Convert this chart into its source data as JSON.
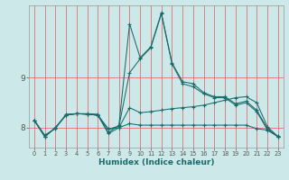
{
  "xlabel": "Humidex (Indice chaleur)",
  "background_color": "#cce8e8",
  "line_color": "#1a6b6b",
  "grid_color_v": "#e07070",
  "grid_color_h": "#e07070",
  "xlim": [
    -0.5,
    23.5
  ],
  "ylim": [
    7.6,
    10.45
  ],
  "yticks": [
    8,
    9
  ],
  "xtick_labels": [
    "0",
    "1",
    "2",
    "3",
    "4",
    "5",
    "6",
    "7",
    "8",
    "9",
    "10",
    "11",
    "12",
    "13",
    "14",
    "15",
    "16",
    "17",
    "18",
    "19",
    "20",
    "21",
    "22",
    "23"
  ],
  "series": [
    [
      8.15,
      7.85,
      7.98,
      8.27,
      8.28,
      8.28,
      8.27,
      7.9,
      8.05,
      10.08,
      9.4,
      9.62,
      10.3,
      9.3,
      8.92,
      8.88,
      8.7,
      8.62,
      8.62,
      8.48,
      8.53,
      8.35,
      7.98,
      7.83
    ],
    [
      8.15,
      7.82,
      8.0,
      8.25,
      8.28,
      8.27,
      8.25,
      7.97,
      8.03,
      9.1,
      9.38,
      9.6,
      10.28,
      9.28,
      8.88,
      8.82,
      8.68,
      8.6,
      8.6,
      8.45,
      8.5,
      8.32,
      7.96,
      7.82
    ],
    [
      8.15,
      7.82,
      8.0,
      8.25,
      8.28,
      8.27,
      8.25,
      7.97,
      8.0,
      8.08,
      8.05,
      8.05,
      8.05,
      8.05,
      8.05,
      8.05,
      8.05,
      8.05,
      8.05,
      8.05,
      8.05,
      7.98,
      7.95,
      7.82
    ],
    [
      8.15,
      7.82,
      8.0,
      8.25,
      8.28,
      8.27,
      8.25,
      7.88,
      8.0,
      8.4,
      8.3,
      8.32,
      8.35,
      8.38,
      8.4,
      8.42,
      8.45,
      8.5,
      8.55,
      8.6,
      8.62,
      8.5,
      8.02,
      7.82
    ]
  ],
  "xlabel_fontsize": 6.5,
  "xlabel_fontweight": "bold",
  "ytick_fontsize": 6.5,
  "xtick_fontsize": 4.8
}
